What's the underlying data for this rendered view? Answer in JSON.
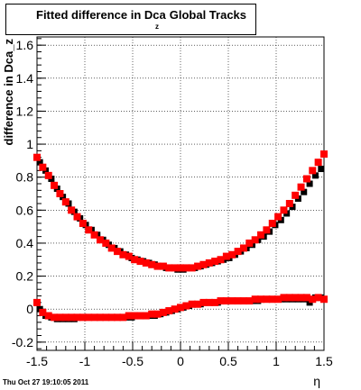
{
  "header": {
    "title": "Fitted difference in Dca",
    "title_sub": "z",
    "title_suffix": "Global Tracks"
  },
  "footer": {
    "timestamp": "Thu Oct 27 19:10:05 2011"
  },
  "chart_data": {
    "type": "scatter",
    "title": "Fitted difference in Dca_z Global Tracks",
    "xlabel": "η",
    "ylabel": "difference in Dca_z",
    "xlim": [
      -1.5,
      1.5
    ],
    "ylim": [
      -0.25,
      1.65
    ],
    "xticks": [
      -1.5,
      -1,
      -0.5,
      0,
      0.5,
      1,
      1.5
    ],
    "yticks": [
      -0.2,
      0,
      0.2,
      0.4,
      0.6,
      0.8,
      1,
      1.2,
      1.4,
      1.6
    ],
    "xtick_labels": [
      "-1.5",
      "-1",
      "-0.5",
      "0",
      "0.5",
      "1",
      "1.5"
    ],
    "ytick_labels": [
      "-0.2",
      "0",
      "0.2",
      "0.4",
      "0.6",
      "0.8",
      "1",
      "1.2",
      "1.4",
      "1.6"
    ],
    "grid": true,
    "series": [
      {
        "color": "#000000",
        "marker": "square",
        "x": [
          -1.47,
          -1.41,
          -1.35,
          -1.29,
          -1.23,
          -1.17,
          -1.11,
          -1.05,
          -0.99,
          -0.93,
          -0.87,
          -0.81,
          -0.75,
          -0.69,
          -0.63,
          -0.57,
          -0.51,
          -0.45,
          -0.39,
          -0.33,
          -0.27,
          -0.21,
          -0.15,
          -0.09,
          -0.03,
          0.03,
          0.09,
          0.15,
          0.21,
          0.27,
          0.33,
          0.39,
          0.45,
          0.51,
          0.57,
          0.63,
          0.69,
          0.75,
          0.81,
          0.87,
          0.93,
          0.99,
          1.05,
          1.11,
          1.17,
          1.23,
          1.29,
          1.35,
          1.41,
          1.47,
          -1.47,
          -1.41,
          -1.35,
          -1.29,
          -1.23,
          -1.17,
          -1.11,
          -1.05,
          -0.99,
          -0.93,
          -0.87,
          -0.81,
          -0.75,
          -0.69,
          -0.63,
          -0.57,
          -0.51,
          -0.45,
          -0.39,
          -0.33,
          -0.27,
          -0.21,
          -0.15,
          -0.09,
          -0.03,
          0.03,
          0.09,
          0.15,
          0.21,
          0.27,
          0.33,
          0.39,
          0.45,
          0.51,
          0.57,
          0.63,
          0.69,
          0.75,
          0.81,
          0.87,
          0.93,
          0.99,
          1.05,
          1.11,
          1.17,
          1.23,
          1.29,
          1.35,
          1.41,
          1.47
        ],
        "y": [
          0.89,
          0.84,
          0.79,
          0.73,
          0.68,
          0.64,
          0.59,
          0.55,
          0.51,
          0.48,
          0.45,
          0.42,
          0.39,
          0.37,
          0.35,
          0.33,
          0.31,
          0.3,
          0.29,
          0.28,
          0.27,
          0.26,
          0.25,
          0.25,
          0.24,
          0.24,
          0.25,
          0.25,
          0.26,
          0.27,
          0.28,
          0.29,
          0.3,
          0.31,
          0.33,
          0.35,
          0.37,
          0.39,
          0.42,
          0.44,
          0.47,
          0.51,
          0.54,
          0.58,
          0.62,
          0.67,
          0.71,
          0.76,
          0.81,
          0.85,
          0.0,
          -0.04,
          -0.05,
          -0.06,
          -0.06,
          -0.06,
          -0.06,
          -0.05,
          -0.05,
          -0.05,
          -0.05,
          -0.05,
          -0.05,
          -0.05,
          -0.05,
          -0.05,
          -0.05,
          -0.04,
          -0.04,
          -0.04,
          -0.04,
          -0.03,
          -0.02,
          -0.01,
          0.0,
          0.01,
          0.02,
          0.03,
          0.03,
          0.04,
          0.04,
          0.04,
          0.05,
          0.05,
          0.05,
          0.05,
          0.05,
          0.05,
          0.05,
          0.06,
          0.06,
          0.06,
          0.06,
          0.06,
          0.06,
          0.06,
          0.06,
          0.04,
          0.07,
          0.07
        ]
      },
      {
        "color": "#ff0000",
        "marker": "square",
        "x": [
          -1.5,
          -1.44,
          -1.38,
          -1.32,
          -1.26,
          -1.2,
          -1.14,
          -1.08,
          -1.02,
          -0.96,
          -0.9,
          -0.84,
          -0.78,
          -0.72,
          -0.66,
          -0.6,
          -0.54,
          -0.48,
          -0.42,
          -0.36,
          -0.3,
          -0.24,
          -0.18,
          -0.12,
          -0.06,
          0.0,
          0.06,
          0.12,
          0.18,
          0.24,
          0.3,
          0.36,
          0.42,
          0.48,
          0.54,
          0.6,
          0.66,
          0.72,
          0.78,
          0.84,
          0.9,
          0.96,
          1.02,
          1.08,
          1.14,
          1.2,
          1.26,
          1.32,
          1.38,
          1.44,
          1.5,
          -1.5,
          -1.44,
          -1.38,
          -1.32,
          -1.26,
          -1.2,
          -1.14,
          -1.08,
          -1.02,
          -0.96,
          -0.9,
          -0.84,
          -0.78,
          -0.72,
          -0.66,
          -0.6,
          -0.54,
          -0.48,
          -0.42,
          -0.36,
          -0.3,
          -0.24,
          -0.18,
          -0.12,
          -0.06,
          0.0,
          0.06,
          0.12,
          0.18,
          0.24,
          0.3,
          0.36,
          0.42,
          0.48,
          0.54,
          0.6,
          0.66,
          0.72,
          0.78,
          0.84,
          0.9,
          0.96,
          1.02,
          1.08,
          1.14,
          1.2,
          1.26,
          1.32,
          1.38,
          1.44,
          1.5
        ],
        "y": [
          0.92,
          0.86,
          0.81,
          0.75,
          0.7,
          0.65,
          0.6,
          0.56,
          0.52,
          0.48,
          0.45,
          0.42,
          0.4,
          0.37,
          0.35,
          0.33,
          0.32,
          0.3,
          0.29,
          0.28,
          0.27,
          0.26,
          0.26,
          0.25,
          0.25,
          0.25,
          0.25,
          0.25,
          0.26,
          0.27,
          0.28,
          0.29,
          0.3,
          0.32,
          0.33,
          0.35,
          0.37,
          0.4,
          0.42,
          0.45,
          0.48,
          0.52,
          0.56,
          0.6,
          0.64,
          0.69,
          0.74,
          0.79,
          0.84,
          0.89,
          0.94,
          0.04,
          -0.02,
          -0.04,
          -0.05,
          -0.05,
          -0.05,
          -0.05,
          -0.05,
          -0.05,
          -0.05,
          -0.05,
          -0.05,
          -0.05,
          -0.05,
          -0.05,
          -0.05,
          -0.04,
          -0.04,
          -0.04,
          -0.04,
          -0.03,
          -0.03,
          -0.02,
          -0.01,
          0.0,
          0.01,
          0.02,
          0.03,
          0.03,
          0.04,
          0.04,
          0.04,
          0.05,
          0.05,
          0.05,
          0.05,
          0.05,
          0.05,
          0.06,
          0.06,
          0.06,
          0.06,
          0.06,
          0.07,
          0.07,
          0.07,
          0.07,
          0.07,
          0.06,
          0.07,
          0.06
        ]
      }
    ]
  }
}
